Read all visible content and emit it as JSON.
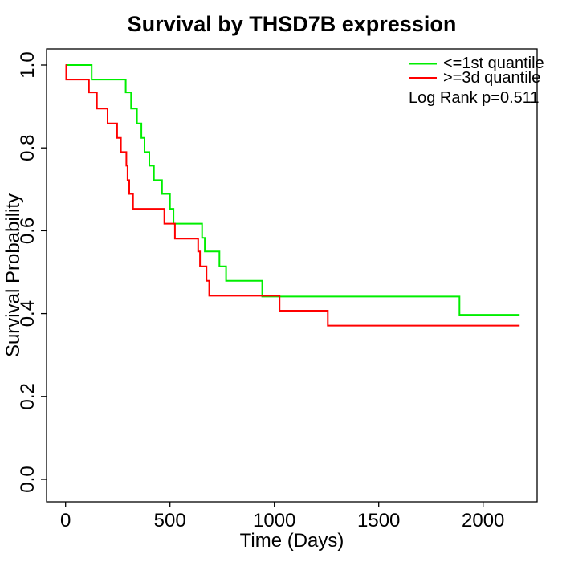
{
  "chart_data": {
    "type": "line",
    "subtype": "kaplan-meier-step",
    "title": "Survival by THSD7B expression",
    "xlabel": "Time (Days)",
    "ylabel": "Survival Probability",
    "x_ticks": [
      0,
      500,
      1000,
      1500,
      2000
    ],
    "y_ticks": [
      "0.0",
      "0.2",
      "0.4",
      "0.6",
      "0.8",
      "1.0"
    ],
    "xlim": [
      0,
      2190
    ],
    "ylim": [
      0,
      1
    ],
    "grid": false,
    "legend_position": "top-right",
    "annotation": "Log Rank p=0.511",
    "axis_color": "#000000",
    "series": [
      {
        "name": "<=1st quantile",
        "color": "#00ee00",
        "end_time": 2175,
        "steps": [
          [
            0,
            1.0
          ],
          [
            125,
            0.965
          ],
          [
            288,
            0.934
          ],
          [
            314,
            0.895
          ],
          [
            342,
            0.859
          ],
          [
            363,
            0.824
          ],
          [
            378,
            0.79
          ],
          [
            401,
            0.757
          ],
          [
            423,
            0.722
          ],
          [
            462,
            0.689
          ],
          [
            500,
            0.653
          ],
          [
            517,
            0.617
          ],
          [
            654,
            0.583
          ],
          [
            667,
            0.55
          ],
          [
            737,
            0.514
          ],
          [
            769,
            0.479
          ],
          [
            942,
            0.441
          ],
          [
            1887,
            0.397
          ]
        ]
      },
      {
        "name": ">=3d quantile",
        "color": "#ff0000",
        "end_time": 2175,
        "steps": [
          [
            0,
            1.0
          ],
          [
            3,
            0.965
          ],
          [
            112,
            0.934
          ],
          [
            150,
            0.895
          ],
          [
            201,
            0.859
          ],
          [
            247,
            0.824
          ],
          [
            265,
            0.79
          ],
          [
            291,
            0.757
          ],
          [
            297,
            0.722
          ],
          [
            305,
            0.689
          ],
          [
            323,
            0.653
          ],
          [
            473,
            0.617
          ],
          [
            524,
            0.581
          ],
          [
            635,
            0.55
          ],
          [
            644,
            0.514
          ],
          [
            675,
            0.479
          ],
          [
            688,
            0.443
          ],
          [
            1025,
            0.407
          ],
          [
            1256,
            0.371
          ]
        ]
      }
    ]
  }
}
